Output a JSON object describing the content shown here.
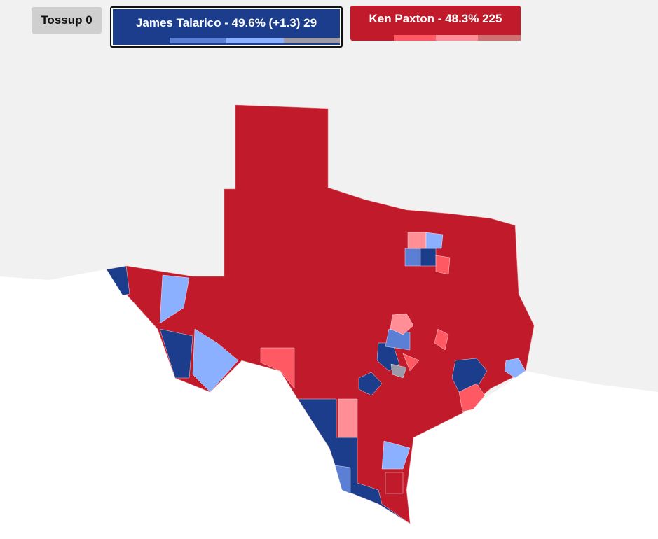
{
  "buttons": [
    {
      "label": "Tossup 0"
    },
    {
      "label": "James Talarico - 49.6% (+1.3) 29"
    },
    {
      "label": "Ken Paxton - 48.3% 225"
    }
  ]
}
